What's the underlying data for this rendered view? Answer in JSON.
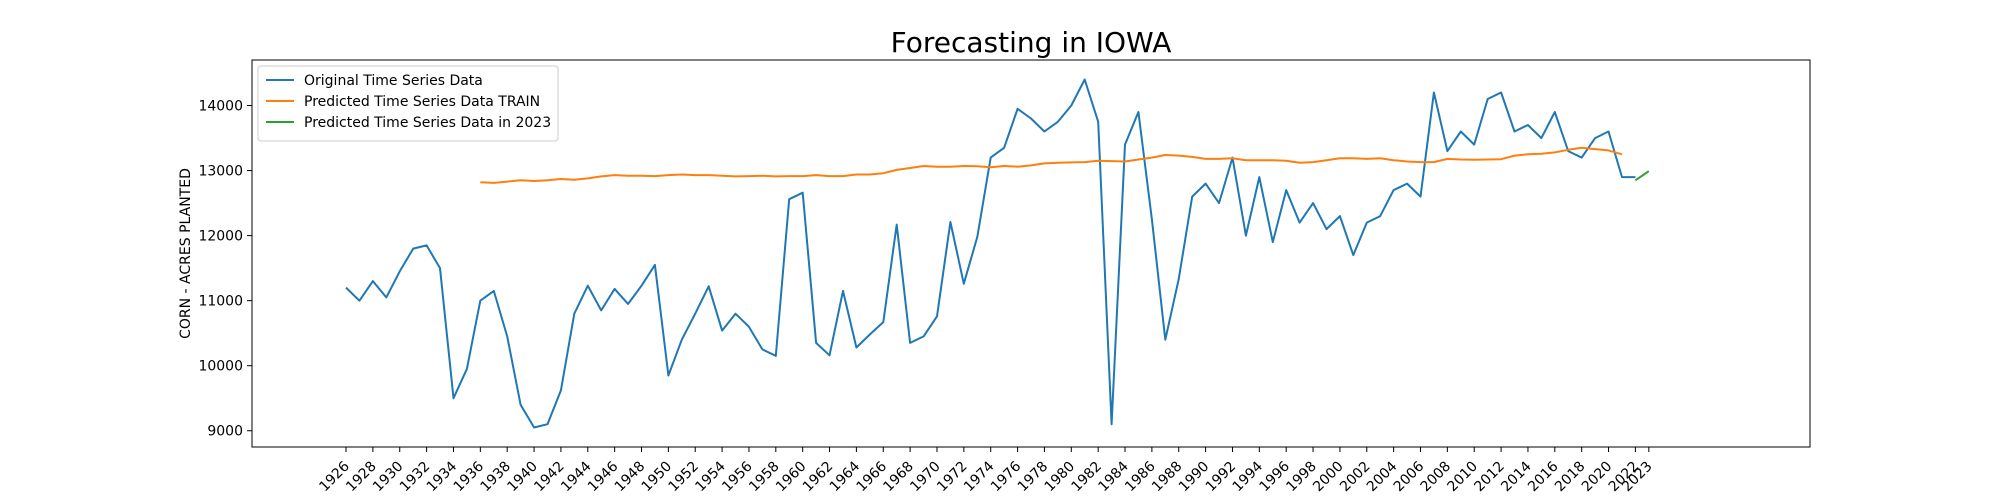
{
  "chart_data": {
    "type": "line",
    "title": "Forecasting in IOWA",
    "xlabel": "",
    "ylabel": "CORN - ACRES PLANTED",
    "xlim": [
      1919,
      2035
    ],
    "ylim": [
      8750,
      14700
    ],
    "x_ticks": [
      1926,
      1928,
      1930,
      1932,
      1934,
      1936,
      1938,
      1940,
      1942,
      1944,
      1946,
      1948,
      1950,
      1952,
      1954,
      1956,
      1958,
      1960,
      1962,
      1964,
      1966,
      1968,
      1970,
      1972,
      1974,
      1976,
      1978,
      1980,
      1982,
      1984,
      1986,
      1988,
      1990,
      1992,
      1994,
      1996,
      1998,
      2000,
      2002,
      2004,
      2006,
      2008,
      2010,
      2012,
      2014,
      2016,
      2018,
      2020,
      2022,
      2023
    ],
    "y_ticks": [
      9000,
      10000,
      11000,
      12000,
      13000,
      14000
    ],
    "grid": false,
    "legend_position": "upper left",
    "series": [
      {
        "name": "Original Time Series Data",
        "color": "#1f77b4",
        "x": [
          1926,
          1927,
          1928,
          1929,
          1930,
          1931,
          1932,
          1933,
          1934,
          1935,
          1936,
          1937,
          1938,
          1939,
          1940,
          1941,
          1942,
          1943,
          1944,
          1945,
          1946,
          1947,
          1948,
          1949,
          1950,
          1951,
          1952,
          1953,
          1954,
          1955,
          1956,
          1957,
          1958,
          1959,
          1960,
          1961,
          1962,
          1963,
          1964,
          1965,
          1966,
          1967,
          1968,
          1969,
          1970,
          1971,
          1972,
          1973,
          1974,
          1975,
          1976,
          1977,
          1978,
          1979,
          1980,
          1981,
          1982,
          1983,
          1984,
          1985,
          1986,
          1987,
          1988,
          1989,
          1990,
          1991,
          1992,
          1993,
          1994,
          1995,
          1996,
          1997,
          1998,
          1999,
          2000,
          2001,
          2002,
          2003,
          2004,
          2005,
          2006,
          2007,
          2008,
          2009,
          2010,
          2011,
          2012,
          2013,
          2014,
          2015,
          2016,
          2017,
          2018,
          2019,
          2020,
          2021,
          2022
        ],
        "values": [
          11200,
          11000,
          11300,
          11050,
          11450,
          11800,
          11850,
          11500,
          9500,
          9950,
          11000,
          11150,
          10450,
          9400,
          9050,
          9100,
          9620,
          10800,
          11230,
          10850,
          11180,
          10950,
          11230,
          11550,
          9850,
          10400,
          10800,
          11220,
          10540,
          10800,
          10600,
          10250,
          10150,
          12560,
          12660,
          10350,
          10160,
          11150,
          10280,
          10480,
          10670,
          12170,
          10350,
          10450,
          10760,
          12210,
          11260,
          11980,
          13200,
          13350,
          13950,
          13800,
          13600,
          13750,
          14000,
          14400,
          13750,
          9100,
          13400,
          13900,
          12250,
          10400,
          11330,
          12600,
          12800,
          12500,
          13200,
          12000,
          12900,
          11900,
          12700,
          12200,
          12500,
          12100,
          12300,
          11700,
          12200,
          12300,
          12700,
          12800,
          12600,
          14200,
          13300,
          13600,
          13400,
          14100,
          14200,
          13600,
          13700,
          13500,
          13900,
          13300,
          13200,
          13500,
          13600,
          12900,
          12900
        ]
      },
      {
        "name": "Predicted Time Series Data TRAIN",
        "color": "#ff7f0e",
        "x": [
          1936,
          1937,
          1938,
          1939,
          1940,
          1941,
          1942,
          1943,
          1944,
          1945,
          1946,
          1947,
          1948,
          1949,
          1950,
          1951,
          1952,
          1953,
          1954,
          1955,
          1956,
          1957,
          1958,
          1959,
          1960,
          1961,
          1962,
          1963,
          1964,
          1965,
          1966,
          1967,
          1968,
          1969,
          1970,
          1971,
          1972,
          1973,
          1974,
          1975,
          1976,
          1977,
          1978,
          1979,
          1980,
          1981,
          1982,
          1983,
          1984,
          1985,
          1986,
          1987,
          1988,
          1989,
          1990,
          1991,
          1992,
          1993,
          1994,
          1995,
          1996,
          1997,
          1998,
          1999,
          2000,
          2001,
          2002,
          2003,
          2004,
          2005,
          2006,
          2007,
          2008,
          2009,
          2010,
          2011,
          2012,
          2013,
          2014,
          2015,
          2016,
          2017,
          2018,
          2019,
          2020,
          2021
        ],
        "values": [
          12820,
          12810,
          12830,
          12850,
          12840,
          12850,
          12870,
          12860,
          12880,
          12910,
          12930,
          12920,
          12920,
          12915,
          12930,
          12940,
          12930,
          12930,
          12920,
          12910,
          12915,
          12920,
          12910,
          12915,
          12915,
          12930,
          12915,
          12915,
          12940,
          12940,
          12960,
          13010,
          13040,
          13070,
          13060,
          13060,
          13070,
          13065,
          13050,
          13070,
          13060,
          13080,
          13110,
          13120,
          13125,
          13130,
          13150,
          13145,
          13140,
          13170,
          13200,
          13240,
          13230,
          13210,
          13180,
          13180,
          13190,
          13160,
          13160,
          13160,
          13150,
          13120,
          13130,
          13160,
          13190,
          13190,
          13180,
          13190,
          13160,
          13140,
          13130,
          13130,
          13180,
          13170,
          13165,
          13170,
          13175,
          13230,
          13250,
          13260,
          13280,
          13320,
          13350,
          13330,
          13310,
          13250
        ]
      },
      {
        "name": "Predicted Time Series Data in 2023",
        "color": "#2ca02c",
        "x": [
          2022,
          2023
        ],
        "values": [
          12850,
          12990
        ]
      }
    ]
  }
}
